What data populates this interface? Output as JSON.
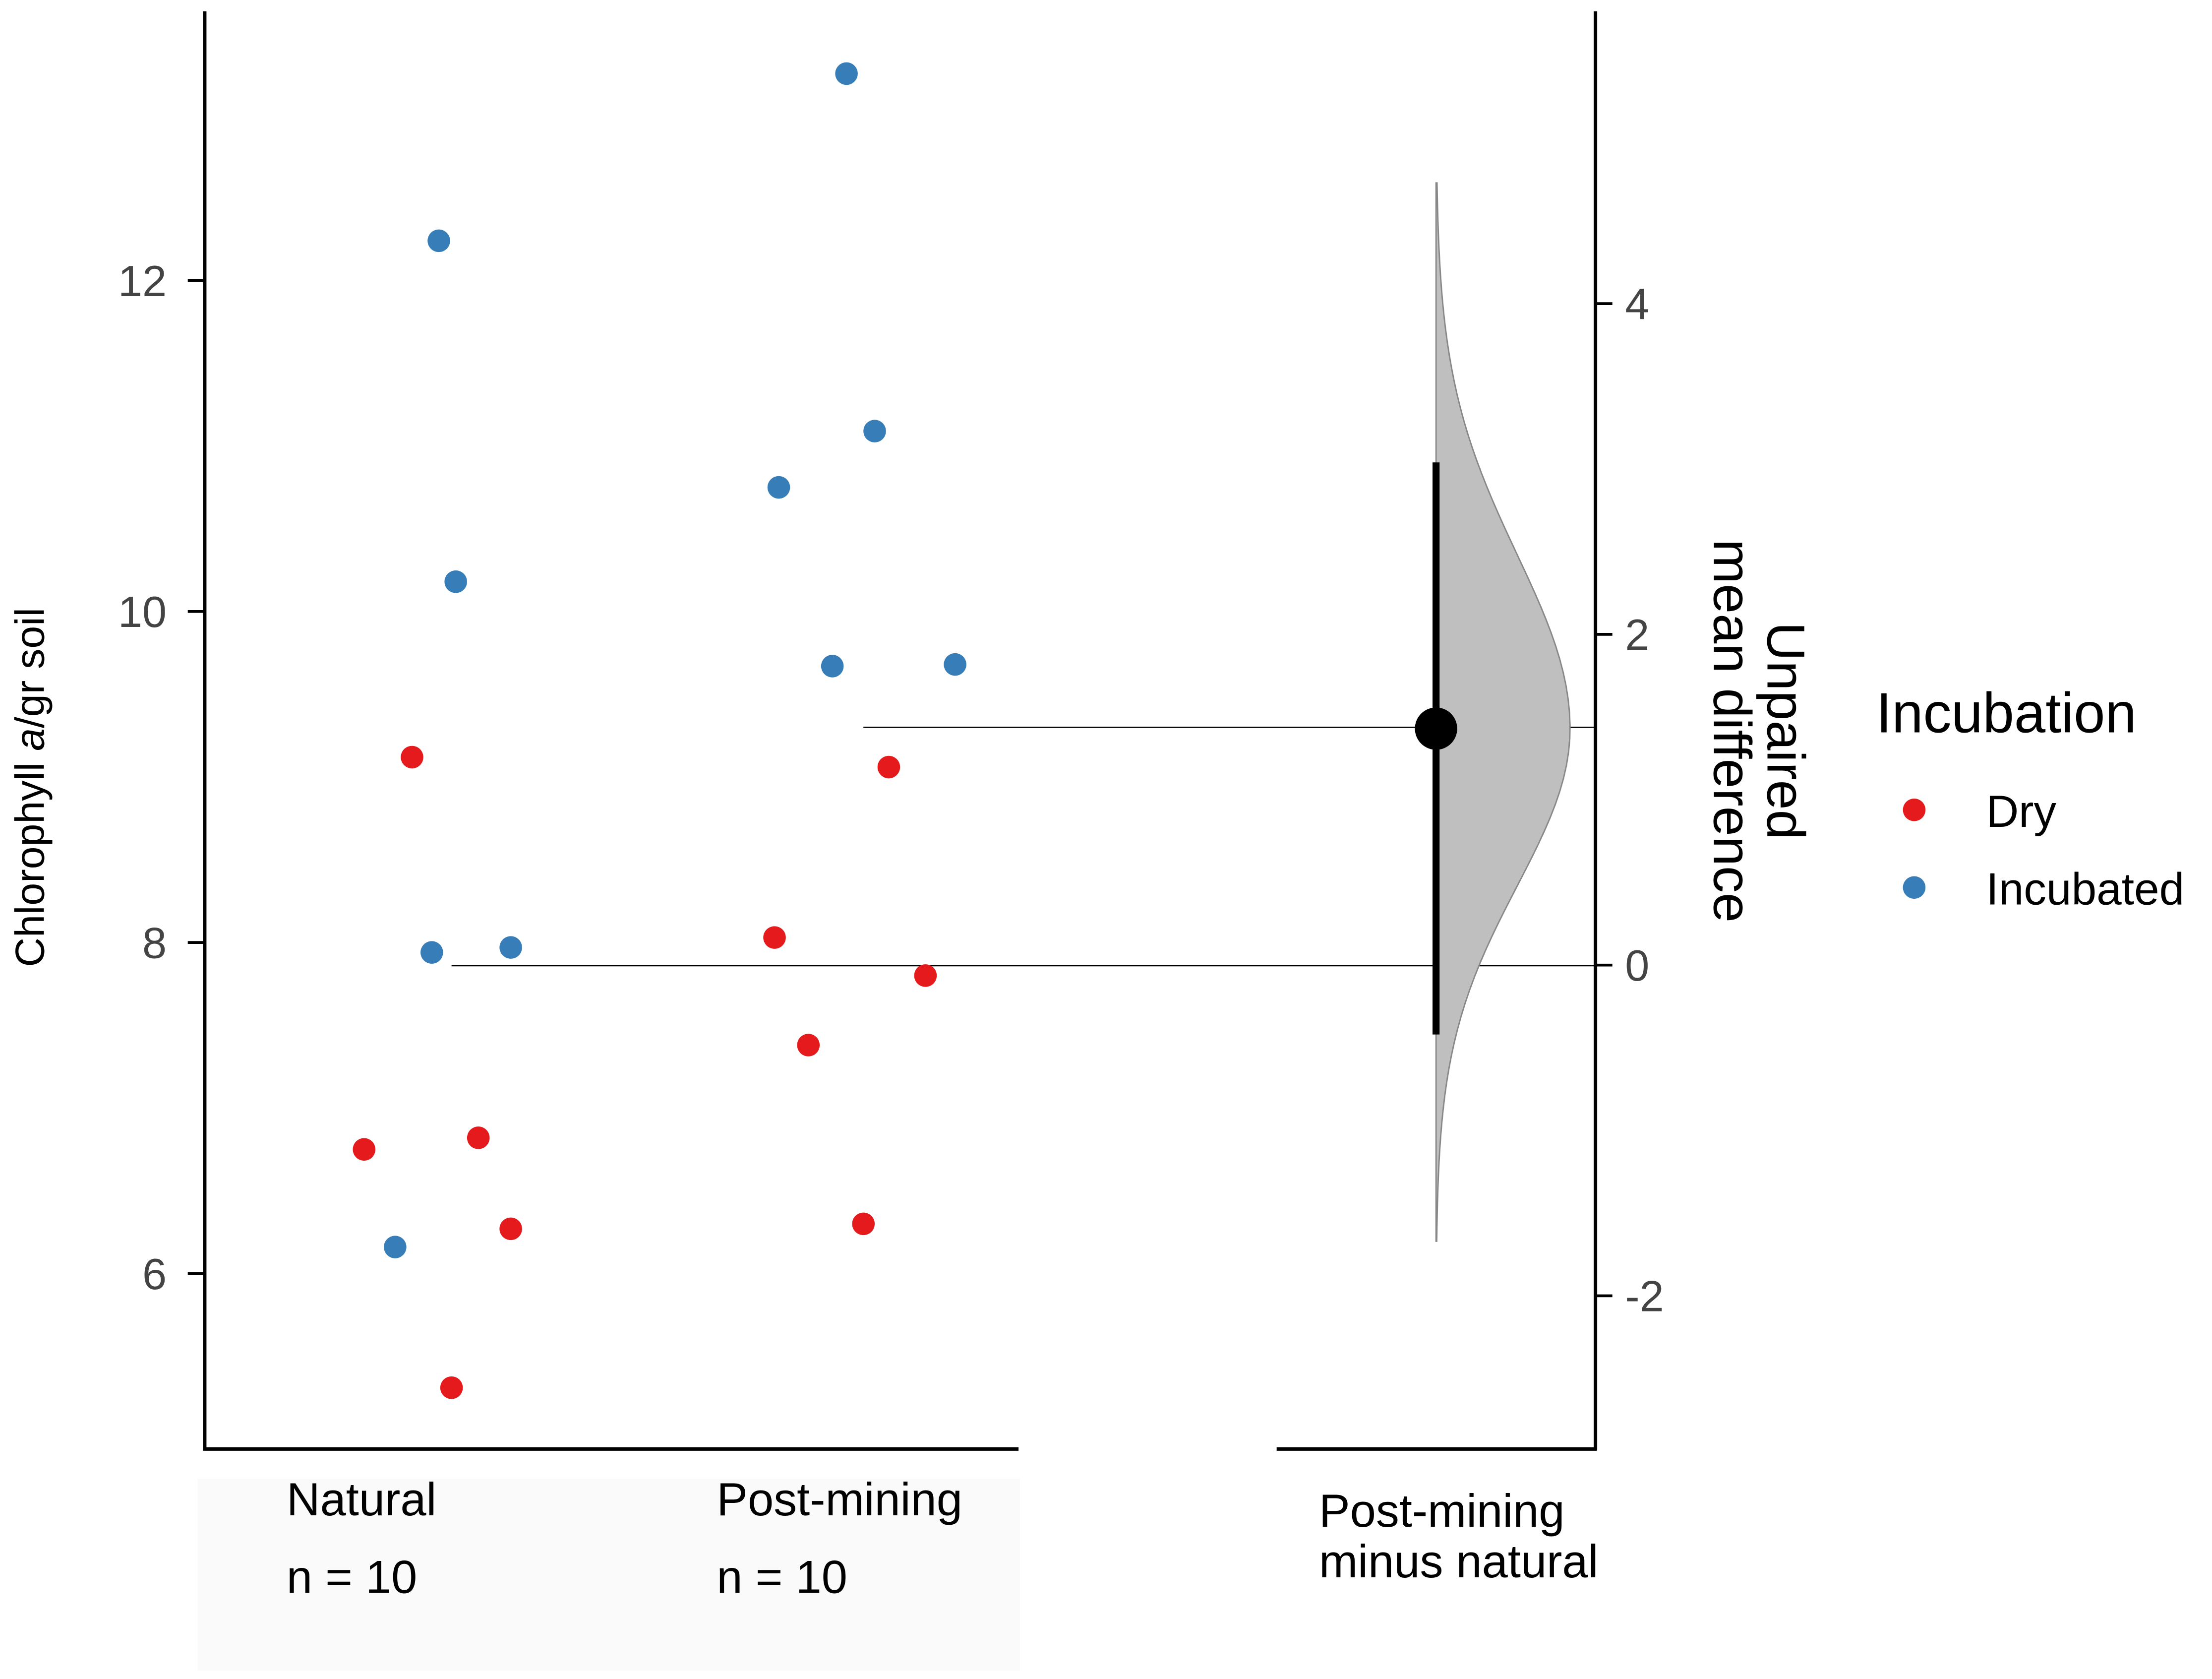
{
  "chart_data": {
    "type": "scatter",
    "subtype": "estimation-plot (Gardner-Altman)",
    "ylabel_parts": [
      "Chlorophyll ",
      "a",
      "/gr soil"
    ],
    "ylabel": "Chlorophyll a/gr soil",
    "right_ylabel": [
      "Unpaired",
      "mean difference"
    ],
    "left_axis": {
      "ticks": [
        6,
        8,
        10,
        12
      ],
      "tick_labels": [
        "6",
        "8",
        "10",
        "12"
      ],
      "range": [
        5.0,
        13.6
      ]
    },
    "right_axis": {
      "ticks": [
        -2,
        0,
        2,
        4
      ],
      "tick_labels": [
        "-2",
        "0",
        "2",
        "4"
      ]
    },
    "groups": [
      {
        "name": "Natural",
        "n_label": "n = 10",
        "mean": 7.86,
        "points": [
          {
            "value": 12.24,
            "incubation": "Incubated"
          },
          {
            "value": 10.18,
            "incubation": "Incubated"
          },
          {
            "value": 7.94,
            "incubation": "Incubated"
          },
          {
            "value": 7.97,
            "incubation": "Incubated"
          },
          {
            "value": 6.16,
            "incubation": "Incubated"
          },
          {
            "value": 9.12,
            "incubation": "Dry"
          },
          {
            "value": 6.75,
            "incubation": "Dry"
          },
          {
            "value": 6.82,
            "incubation": "Dry"
          },
          {
            "value": 6.27,
            "incubation": "Dry"
          },
          {
            "value": 5.31,
            "incubation": "Dry"
          }
        ]
      },
      {
        "name": "Post-mining",
        "n_label": "n = 10",
        "mean": 9.3,
        "points": [
          {
            "value": 13.25,
            "incubation": "Incubated"
          },
          {
            "value": 11.09,
            "incubation": "Incubated"
          },
          {
            "value": 10.75,
            "incubation": "Incubated"
          },
          {
            "value": 9.67,
            "incubation": "Incubated"
          },
          {
            "value": 9.68,
            "incubation": "Incubated"
          },
          {
            "value": 9.06,
            "incubation": "Dry"
          },
          {
            "value": 8.03,
            "incubation": "Dry"
          },
          {
            "value": 7.8,
            "incubation": "Dry"
          },
          {
            "value": 7.38,
            "incubation": "Dry"
          },
          {
            "value": 6.3,
            "incubation": "Dry"
          }
        ]
      }
    ],
    "effect": {
      "label": [
        "Post-mining",
        "minus natural"
      ],
      "mean_difference": 1.43,
      "ci": [
        -0.42,
        3.04
      ],
      "bootstrap_range": [
        -1.67,
        4.73
      ]
    },
    "legend": {
      "title": "Incubation",
      "placement": "right",
      "items": [
        {
          "label": "Dry",
          "color": "#e41a1c"
        },
        {
          "label": "Incubated",
          "color": "#377eb8"
        }
      ]
    }
  }
}
